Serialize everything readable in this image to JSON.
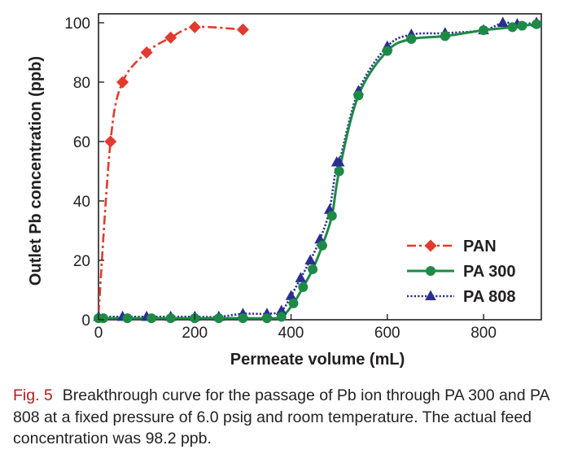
{
  "chart_data": {
    "type": "line",
    "title": "",
    "xlabel": "Permeate volume (mL)",
    "ylabel": "Outlet Pb concentration (ppb)",
    "xlim": [
      0,
      920
    ],
    "ylim": [
      0,
      103
    ],
    "x_ticks": [
      0,
      200,
      400,
      600,
      800
    ],
    "y_ticks": [
      0,
      20,
      40,
      60,
      80,
      100
    ],
    "legend_position": "bottom-right",
    "series": [
      {
        "name": "PAN",
        "color": "#e23a2e",
        "line_style": "dash-dot",
        "marker": "diamond",
        "x": [
          0,
          25,
          50,
          100,
          150,
          200,
          300
        ],
        "y": [
          2,
          60,
          80,
          90,
          95,
          98.5,
          97.7
        ]
      },
      {
        "name": "PA 300",
        "color": "#1e8a47",
        "line_style": "solid",
        "marker": "circle",
        "x": [
          0,
          10,
          60,
          110,
          150,
          200,
          250,
          300,
          350,
          380,
          405,
          425,
          445,
          465,
          485,
          500,
          540,
          600,
          650,
          720,
          800,
          860,
          880,
          910
        ],
        "y": [
          0.5,
          0.5,
          0.5,
          0.5,
          0.5,
          0.5,
          0.5,
          0.5,
          0.5,
          1,
          5.5,
          11,
          17,
          25,
          35,
          50,
          75.5,
          90.5,
          94.5,
          95.5,
          97.5,
          98.5,
          99,
          99.5
        ]
      },
      {
        "name": "PA 808",
        "color": "#2b2e8f",
        "line_style": "dotted",
        "marker": "triangle",
        "x": [
          0,
          50,
          100,
          150,
          200,
          250,
          300,
          350,
          380,
          400,
          420,
          440,
          460,
          480,
          495,
          500,
          540,
          600,
          650,
          720,
          800,
          840,
          870,
          910
        ],
        "y": [
          1,
          1,
          1,
          1,
          1,
          1,
          2,
          2,
          3,
          8,
          14,
          20,
          27,
          37,
          53,
          53,
          77,
          92,
          96,
          96.5,
          97.5,
          100,
          99.5,
          100
        ]
      }
    ]
  },
  "caption": {
    "label": "Fig. 5",
    "text": "Breakthrough curve for the passage of Pb ion through PA 300 and PA 808 at a fixed pressure of 6.0 psig and room temperature. The actual feed concentration was 98.2 ppb."
  }
}
